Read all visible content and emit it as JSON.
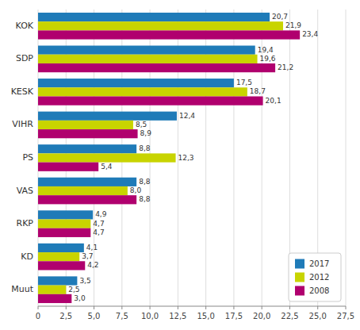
{
  "chart_data": {
    "type": "bar",
    "orientation": "horizontal",
    "categories": [
      "KOK",
      "SDP",
      "KESK",
      "VIHR",
      "PS",
      "VAS",
      "RKP",
      "KD",
      "Muut"
    ],
    "series": [
      {
        "name": "2017",
        "color": "#1f7bb8",
        "values": [
          20.7,
          19.4,
          17.5,
          12.4,
          8.8,
          8.8,
          4.9,
          4.1,
          3.5
        ],
        "value_labels": [
          "20,7",
          "19,4",
          "17,5",
          "12,4",
          "8,8",
          "8,8",
          "4,9",
          "4,1",
          "3,5"
        ]
      },
      {
        "name": "2012",
        "color": "#c8d400",
        "values": [
          21.9,
          19.6,
          18.7,
          8.5,
          12.3,
          8.0,
          4.7,
          3.7,
          2.5
        ],
        "value_labels": [
          "21,9",
          "19,6",
          "18,7",
          "8,5",
          "12,3",
          "8,0",
          "4,7",
          "3,7",
          "2,5"
        ]
      },
      {
        "name": "2008",
        "color": "#b0006e",
        "values": [
          23.4,
          21.2,
          20.1,
          8.9,
          5.4,
          8.8,
          4.7,
          4.2,
          3.0
        ],
        "value_labels": [
          "23,4",
          "21,2",
          "20,1",
          "8,9",
          "5,4",
          "8,8",
          "4,7",
          "4,2",
          "3,0"
        ]
      }
    ],
    "xlim": [
      0,
      27.5
    ],
    "xticks": [
      0,
      {
        "value": 2.5,
        "label": "2,5"
      },
      {
        "value": 5.0,
        "label": "5,0"
      },
      {
        "value": 7.5,
        "label": "7,5"
      },
      {
        "value": 10.0,
        "label": "10,0"
      },
      {
        "value": 12.5,
        "label": "12,5"
      },
      {
        "value": 15.0,
        "label": "15,0"
      },
      {
        "value": 17.5,
        "label": "17,5"
      },
      {
        "value": 20.0,
        "label": "20,0"
      },
      {
        "value": 22.5,
        "label": "22,5"
      },
      {
        "value": 25.0,
        "label": "25,0"
      },
      {
        "value": 27.5,
        "label": "27,5"
      }
    ],
    "grid": true,
    "legend": "lower right",
    "data_labels": true
  }
}
